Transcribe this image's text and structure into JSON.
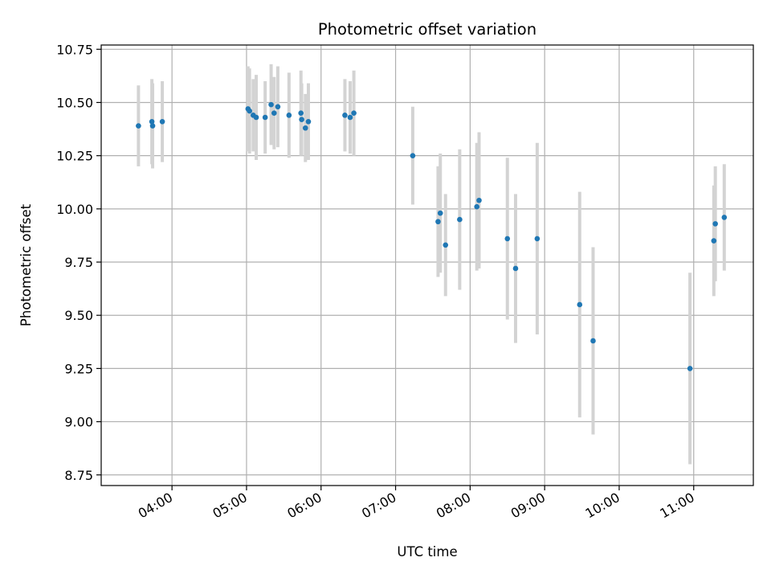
{
  "chart_data": {
    "type": "scatter",
    "title": "Photometric offset variation",
    "xlabel": "UTC time",
    "ylabel": "Photometric offset",
    "x_axis_unit": "hours UTC",
    "xlim": [
      3.05,
      11.8
    ],
    "ylim": [
      8.7,
      10.77
    ],
    "grid": true,
    "x_ticks": [
      {
        "value": 4,
        "label": "04:00"
      },
      {
        "value": 5,
        "label": "05:00"
      },
      {
        "value": 6,
        "label": "06:00"
      },
      {
        "value": 7,
        "label": "07:00"
      },
      {
        "value": 8,
        "label": "08:00"
      },
      {
        "value": 9,
        "label": "09:00"
      },
      {
        "value": 10,
        "label": "10:00"
      },
      {
        "value": 11,
        "label": "11:00"
      }
    ],
    "y_ticks": [
      {
        "value": 8.75,
        "label": "8.75"
      },
      {
        "value": 9.0,
        "label": "9.00"
      },
      {
        "value": 9.25,
        "label": "9.25"
      },
      {
        "value": 9.5,
        "label": "9.50"
      },
      {
        "value": 9.75,
        "label": "9.75"
      },
      {
        "value": 10.0,
        "label": "10.00"
      },
      {
        "value": 10.25,
        "label": "10.25"
      },
      {
        "value": 10.5,
        "label": "10.50"
      },
      {
        "value": 10.75,
        "label": "10.75"
      }
    ],
    "point_color": "#1f77b4",
    "errorbar_color": "#d3d3d3",
    "points": [
      {
        "x": 3.55,
        "y": 10.39,
        "err": 0.19
      },
      {
        "x": 3.73,
        "y": 10.41,
        "err": 0.2
      },
      {
        "x": 3.74,
        "y": 10.39,
        "err": 0.2
      },
      {
        "x": 3.87,
        "y": 10.41,
        "err": 0.19
      },
      {
        "x": 5.02,
        "y": 10.47,
        "err": 0.2
      },
      {
        "x": 5.04,
        "y": 10.46,
        "err": 0.2
      },
      {
        "x": 5.09,
        "y": 10.44,
        "err": 0.17
      },
      {
        "x": 5.13,
        "y": 10.43,
        "err": 0.2
      },
      {
        "x": 5.25,
        "y": 10.43,
        "err": 0.17
      },
      {
        "x": 5.33,
        "y": 10.49,
        "err": 0.19
      },
      {
        "x": 5.37,
        "y": 10.45,
        "err": 0.17
      },
      {
        "x": 5.42,
        "y": 10.48,
        "err": 0.19
      },
      {
        "x": 5.57,
        "y": 10.44,
        "err": 0.2
      },
      {
        "x": 5.73,
        "y": 10.45,
        "err": 0.2
      },
      {
        "x": 5.74,
        "y": 10.42,
        "err": 0.17
      },
      {
        "x": 5.79,
        "y": 10.38,
        "err": 0.16
      },
      {
        "x": 5.83,
        "y": 10.41,
        "err": 0.18
      },
      {
        "x": 6.32,
        "y": 10.44,
        "err": 0.17
      },
      {
        "x": 6.39,
        "y": 10.43,
        "err": 0.17
      },
      {
        "x": 6.44,
        "y": 10.45,
        "err": 0.2
      },
      {
        "x": 7.23,
        "y": 10.25,
        "err": 0.23
      },
      {
        "x": 7.57,
        "y": 9.94,
        "err": 0.26
      },
      {
        "x": 7.6,
        "y": 9.98,
        "err": 0.28
      },
      {
        "x": 7.67,
        "y": 9.83,
        "err": 0.24
      },
      {
        "x": 7.86,
        "y": 9.95,
        "err": 0.33
      },
      {
        "x": 8.09,
        "y": 10.01,
        "err": 0.3
      },
      {
        "x": 8.12,
        "y": 10.04,
        "err": 0.32
      },
      {
        "x": 8.5,
        "y": 9.86,
        "err": 0.38
      },
      {
        "x": 8.61,
        "y": 9.72,
        "err": 0.35
      },
      {
        "x": 8.9,
        "y": 9.86,
        "err": 0.45
      },
      {
        "x": 9.47,
        "y": 9.55,
        "err": 0.53
      },
      {
        "x": 9.65,
        "y": 9.38,
        "err": 0.44
      },
      {
        "x": 10.95,
        "y": 9.25,
        "err": 0.45
      },
      {
        "x": 11.27,
        "y": 9.85,
        "err": 0.26
      },
      {
        "x": 11.29,
        "y": 9.93,
        "err": 0.27
      },
      {
        "x": 11.41,
        "y": 9.96,
        "err": 0.25
      }
    ]
  }
}
